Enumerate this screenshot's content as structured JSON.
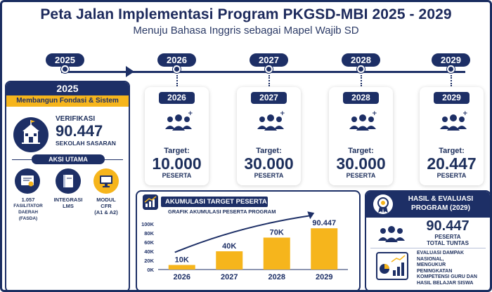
{
  "title": "Peta Jalan Implementasi Program PKGSD-MBI 2025 - 2029",
  "subtitle": "Menuju Bahasa Inggris sebagai Mapel Wajib SD",
  "timeline": {
    "years": [
      "2025",
      "2026",
      "2027",
      "2028",
      "2029"
    ]
  },
  "phase_2025": {
    "year": "2025",
    "label": "Membangun Fondasi & Sistem",
    "verifikasi_label": "VERIFIKASI",
    "verifikasi_value": "90.447",
    "verifikasi_sub": "SEKOLAH SASARAN",
    "aksi_label": "AKSI UTAMA",
    "actions": [
      {
        "line1": "1.057",
        "line2": "FASILITATOR",
        "line3": "DAERAH (FASDA)",
        "icon": "certificate-icon"
      },
      {
        "line1": "INTEGRASI",
        "line2": "LMS",
        "line3": "",
        "icon": "book-icon"
      },
      {
        "line1": "MODUL",
        "line2": "CFR",
        "line3": "(A1 & A2)",
        "icon": "monitor-icon"
      }
    ]
  },
  "targets": [
    {
      "year": "2026",
      "label": "Target:",
      "value": "10.000",
      "unit": "PESERTA"
    },
    {
      "year": "2027",
      "label": "Target:",
      "value": "30.000",
      "unit": "PESERTA"
    },
    {
      "year": "2028",
      "label": "Target:",
      "value": "30.000",
      "unit": "PESERTA"
    },
    {
      "year": "2029",
      "label": "Target:",
      "value": "20.447",
      "unit": "PESERTA"
    }
  ],
  "chart": {
    "title": "AKUMULASI TARGET PESERTA",
    "subtitle": "GRAFIK AKUMULASI PESERTA PROGRAM"
  },
  "chart_data": {
    "type": "bar",
    "title": "AKUMULASI TARGET PESERTA",
    "subtitle": "GRAFIK AKUMULASI PESERTA PROGRAM",
    "categories": [
      "2026",
      "2027",
      "2028",
      "2029"
    ],
    "values": [
      10000,
      40000,
      70000,
      90447
    ],
    "data_labels": [
      "10K",
      "40K",
      "70K",
      "90.447"
    ],
    "yticks": [
      "0K",
      "20K",
      "40K",
      "60K",
      "80K",
      "100K"
    ],
    "ylim": [
      0,
      100000
    ],
    "grid": false,
    "bar_color": "#f6b51c"
  },
  "evaluation": {
    "title_line1": "HASIL & EVALUASI",
    "title_line2": "PROGRAM (2029)",
    "value": "90.447",
    "unit_line1": "PESERTA",
    "unit_line2": "TOTAL TUNTAS",
    "eval_lines": [
      "EVALUASI DAMPAK",
      "NASIONAL,",
      "MENGUKUR",
      "PENINGKATAN",
      "KOMPETENSI GURU DAN",
      "HASIL BELAJAR SISWA"
    ]
  },
  "colors": {
    "navy": "#1d2f66",
    "gold": "#f6b51c"
  }
}
